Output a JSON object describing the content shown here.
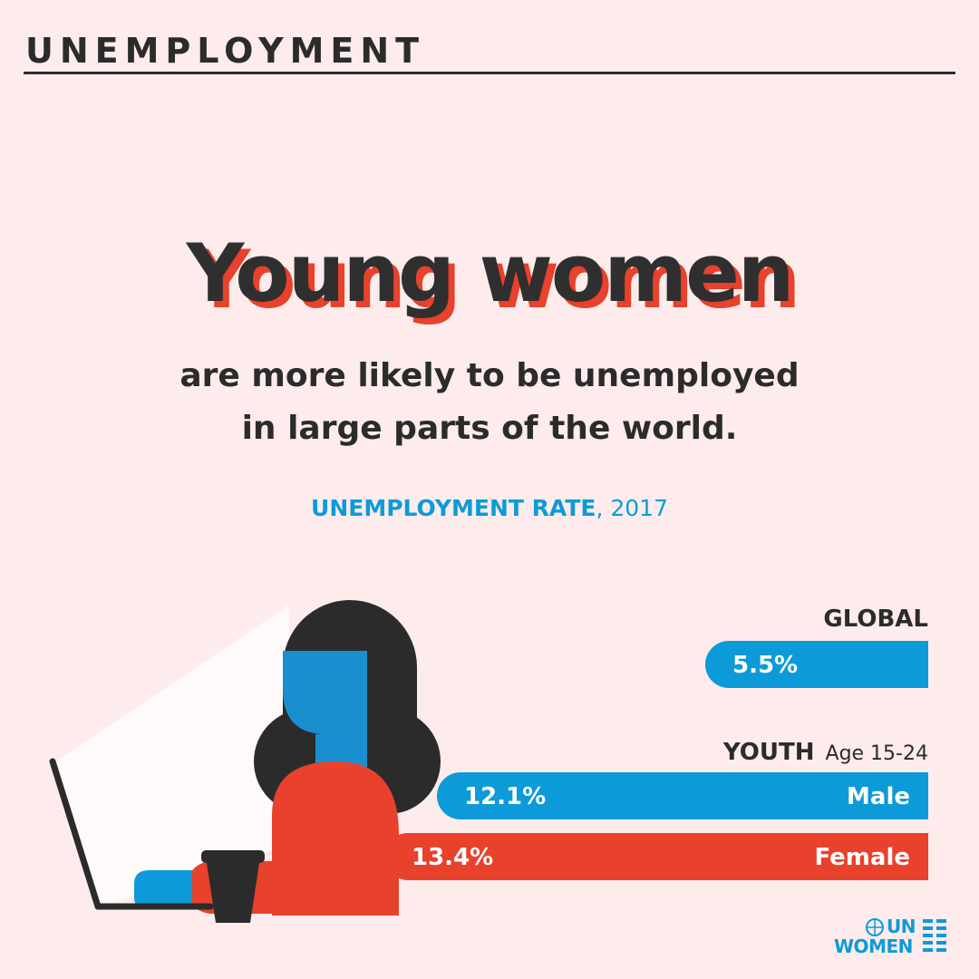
{
  "header": {
    "title": "UNEMPLOYMENT"
  },
  "headline": "Young women",
  "subtitle": {
    "line1": "are more likely to be unemployed",
    "line2": "in large parts of the world."
  },
  "colors": {
    "background": "#fdeceb",
    "blue": "#0d9ad9",
    "red": "#e8412c",
    "dark": "#2b2b2b"
  },
  "chart_data": {
    "type": "bar",
    "title_bold": "UNEMPLOYMENT RATE",
    "title_rest": ", 2017",
    "unit": "%",
    "groups": [
      {
        "label": "GLOBAL",
        "sublabel": ""
      },
      {
        "label": "YOUTH",
        "sublabel": "Age 15-24"
      }
    ],
    "series": [
      {
        "value": 5.5,
        "display": "5.5%",
        "name": "",
        "group": "GLOBAL",
        "color": "#0d9ad9"
      },
      {
        "value": 12.1,
        "display": "12.1%",
        "name": "Male",
        "group": "YOUTH",
        "color": "#0d9ad9"
      },
      {
        "value": 13.4,
        "display": "13.4%",
        "name": "Female",
        "group": "YOUTH",
        "color": "#e8412c"
      }
    ]
  },
  "logo": {
    "line1": "UN",
    "line2": "WOMEN"
  }
}
